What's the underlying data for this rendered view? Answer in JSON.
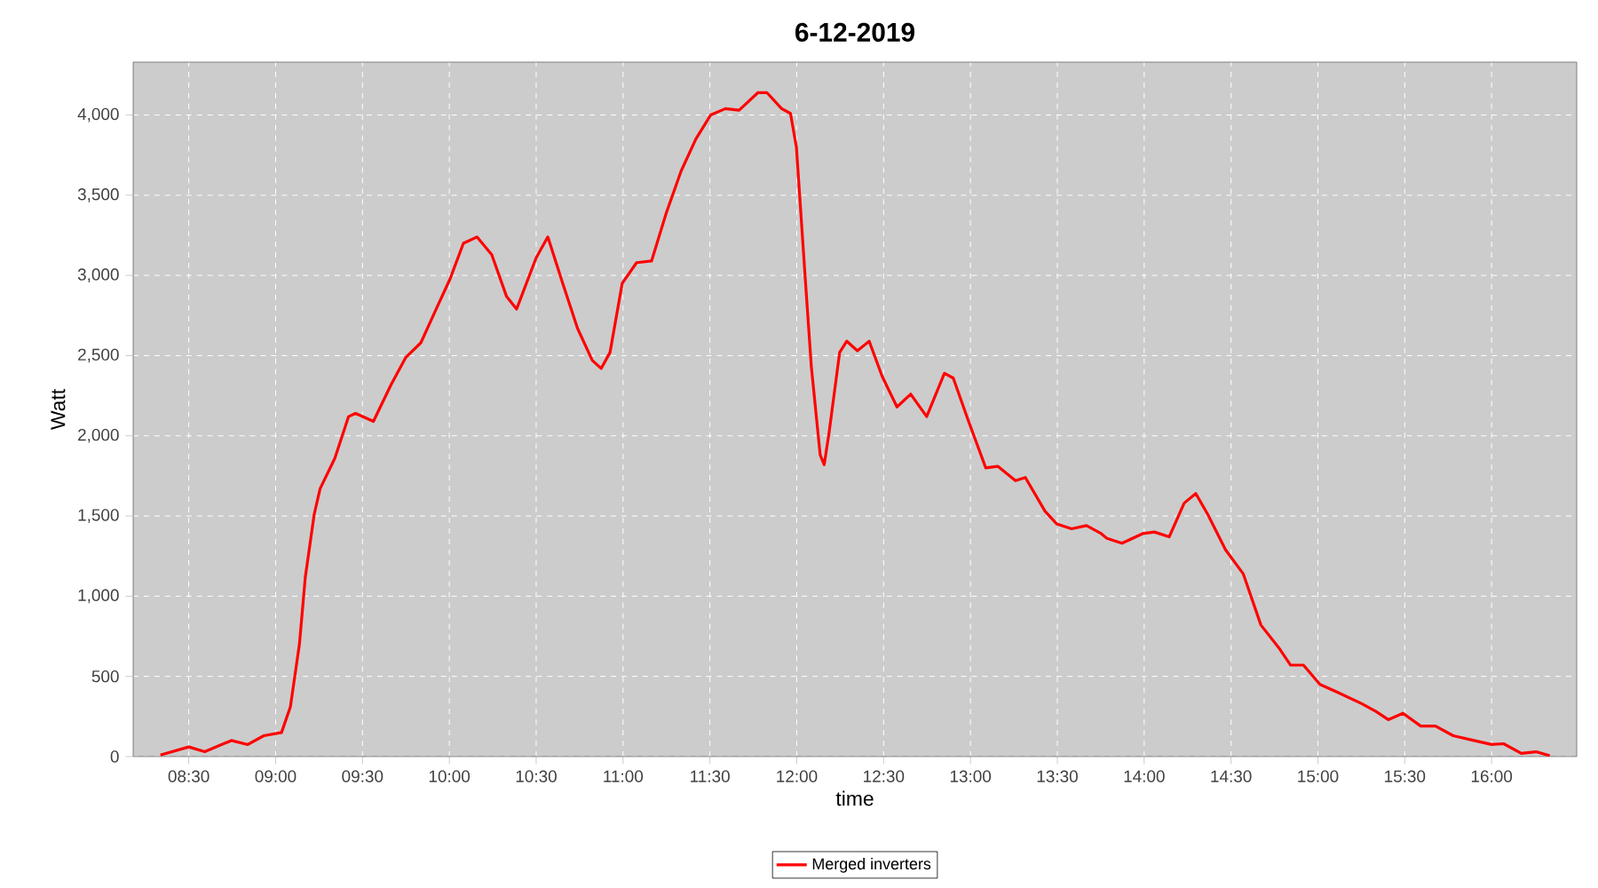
{
  "chart_data": {
    "type": "line",
    "title": "6-12-2019",
    "xlabel": "time",
    "ylabel": "Watt",
    "x": [
      8.337,
      8.5,
      8.592,
      8.745,
      8.84,
      8.932,
      9.034,
      9.085,
      9.137,
      9.171,
      9.222,
      9.256,
      9.341,
      9.42,
      9.46,
      9.563,
      9.665,
      9.75,
      9.836,
      9.92,
      10.005,
      10.081,
      10.159,
      10.244,
      10.329,
      10.387,
      10.5,
      10.567,
      10.653,
      10.738,
      10.823,
      10.874,
      10.925,
      10.995,
      11.078,
      11.164,
      11.249,
      11.334,
      11.419,
      11.504,
      11.589,
      11.668,
      11.777,
      11.828,
      11.913,
      11.964,
      11.998,
      12.049,
      12.084,
      12.135,
      12.158,
      12.186,
      12.247,
      12.288,
      12.349,
      12.417,
      12.492,
      12.577,
      12.656,
      12.748,
      12.85,
      12.901,
      12.986,
      13.088,
      13.157,
      13.259,
      13.316,
      13.429,
      13.497,
      13.582,
      13.668,
      13.753,
      13.786,
      13.872,
      13.991,
      14.059,
      14.144,
      14.23,
      14.297,
      14.366,
      14.468,
      14.57,
      14.672,
      14.774,
      14.843,
      14.917,
      15.012,
      15.115,
      15.252,
      15.336,
      15.405,
      15.49,
      15.592,
      15.677,
      15.779,
      15.898,
      16.0,
      16.069,
      16.171,
      16.256,
      16.335
    ],
    "series": [
      {
        "name": "Merged inverters",
        "color": "#ff0000",
        "values": [
          10,
          60,
          30,
          100,
          75,
          130,
          150,
          310,
          700,
          1120,
          1510,
          1670,
          1860,
          2120,
          2140,
          2090,
          2320,
          2490,
          2580,
          2780,
          2980,
          3200,
          3240,
          3130,
          2870,
          2790,
          3110,
          3240,
          2950,
          2670,
          2470,
          2420,
          2520,
          2950,
          3080,
          3090,
          3390,
          3650,
          3850,
          4000,
          4040,
          4030,
          4140,
          4140,
          4040,
          4010,
          3800,
          2980,
          2430,
          1880,
          1820,
          2020,
          2520,
          2590,
          2530,
          2590,
          2370,
          2180,
          2260,
          2120,
          2390,
          2360,
          2100,
          1800,
          1810,
          1720,
          1740,
          1530,
          1450,
          1420,
          1440,
          1390,
          1360,
          1330,
          1390,
          1400,
          1370,
          1580,
          1640,
          1510,
          1290,
          1140,
          820,
          680,
          570,
          570,
          450,
          400,
          330,
          280,
          230,
          270,
          190,
          190,
          130,
          100,
          75,
          80,
          20,
          30,
          5
        ]
      }
    ],
    "xlim": [
      8.18,
      16.49
    ],
    "ylim": [
      0,
      4330
    ],
    "xticks": [
      {
        "value": 8.5,
        "label": "08:30"
      },
      {
        "value": 9,
        "label": "09:00"
      },
      {
        "value": 9.5,
        "label": "09:30"
      },
      {
        "value": 10,
        "label": "10:00"
      },
      {
        "value": 10.5,
        "label": "10:30"
      },
      {
        "value": 11,
        "label": "11:00"
      },
      {
        "value": 11.5,
        "label": "11:30"
      },
      {
        "value": 12,
        "label": "12:00"
      },
      {
        "value": 12.5,
        "label": "12:30"
      },
      {
        "value": 13,
        "label": "13:00"
      },
      {
        "value": 13.5,
        "label": "13:30"
      },
      {
        "value": 14,
        "label": "14:00"
      },
      {
        "value": 14.5,
        "label": "14:30"
      },
      {
        "value": 15,
        "label": "15:00"
      },
      {
        "value": 15.5,
        "label": "15:30"
      },
      {
        "value": 16,
        "label": "16:00"
      }
    ],
    "yticks": [
      0,
      500,
      {
        "value": 1000,
        "label": "1,000"
      },
      {
        "value": 1500,
        "label": "1,500"
      },
      {
        "value": 2000,
        "label": "2,000"
      },
      {
        "value": 2500,
        "label": "2,500"
      },
      {
        "value": 3000,
        "label": "3,000"
      },
      {
        "value": 3500,
        "label": "3,500"
      },
      {
        "value": 4000,
        "label": "4,000"
      }
    ],
    "grid": true,
    "legend": "bottom",
    "line_style": "solid"
  }
}
